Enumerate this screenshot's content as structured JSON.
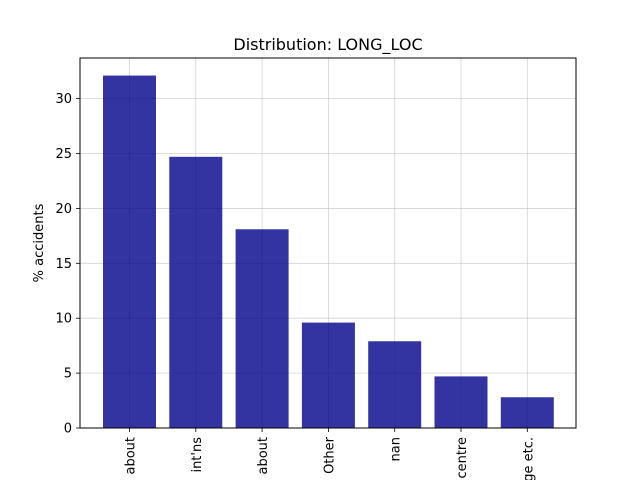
{
  "chart_data": {
    "type": "bar",
    "title": "Distribution: LONG_LOC",
    "xlabel": "",
    "ylabel": "% accidents",
    "categories": [
      "about",
      "int'ns",
      "about",
      "Other",
      "nan",
      "centre",
      "ge etc."
    ],
    "values": [
      32.1,
      24.7,
      18.1,
      9.6,
      7.9,
      4.7,
      2.8
    ],
    "ylim": [
      0,
      33.7
    ],
    "yticks": [
      0,
      5,
      10,
      15,
      20,
      25,
      30
    ],
    "grid": true,
    "bar_color": "#00008B",
    "bar_opacity": 0.8
  }
}
